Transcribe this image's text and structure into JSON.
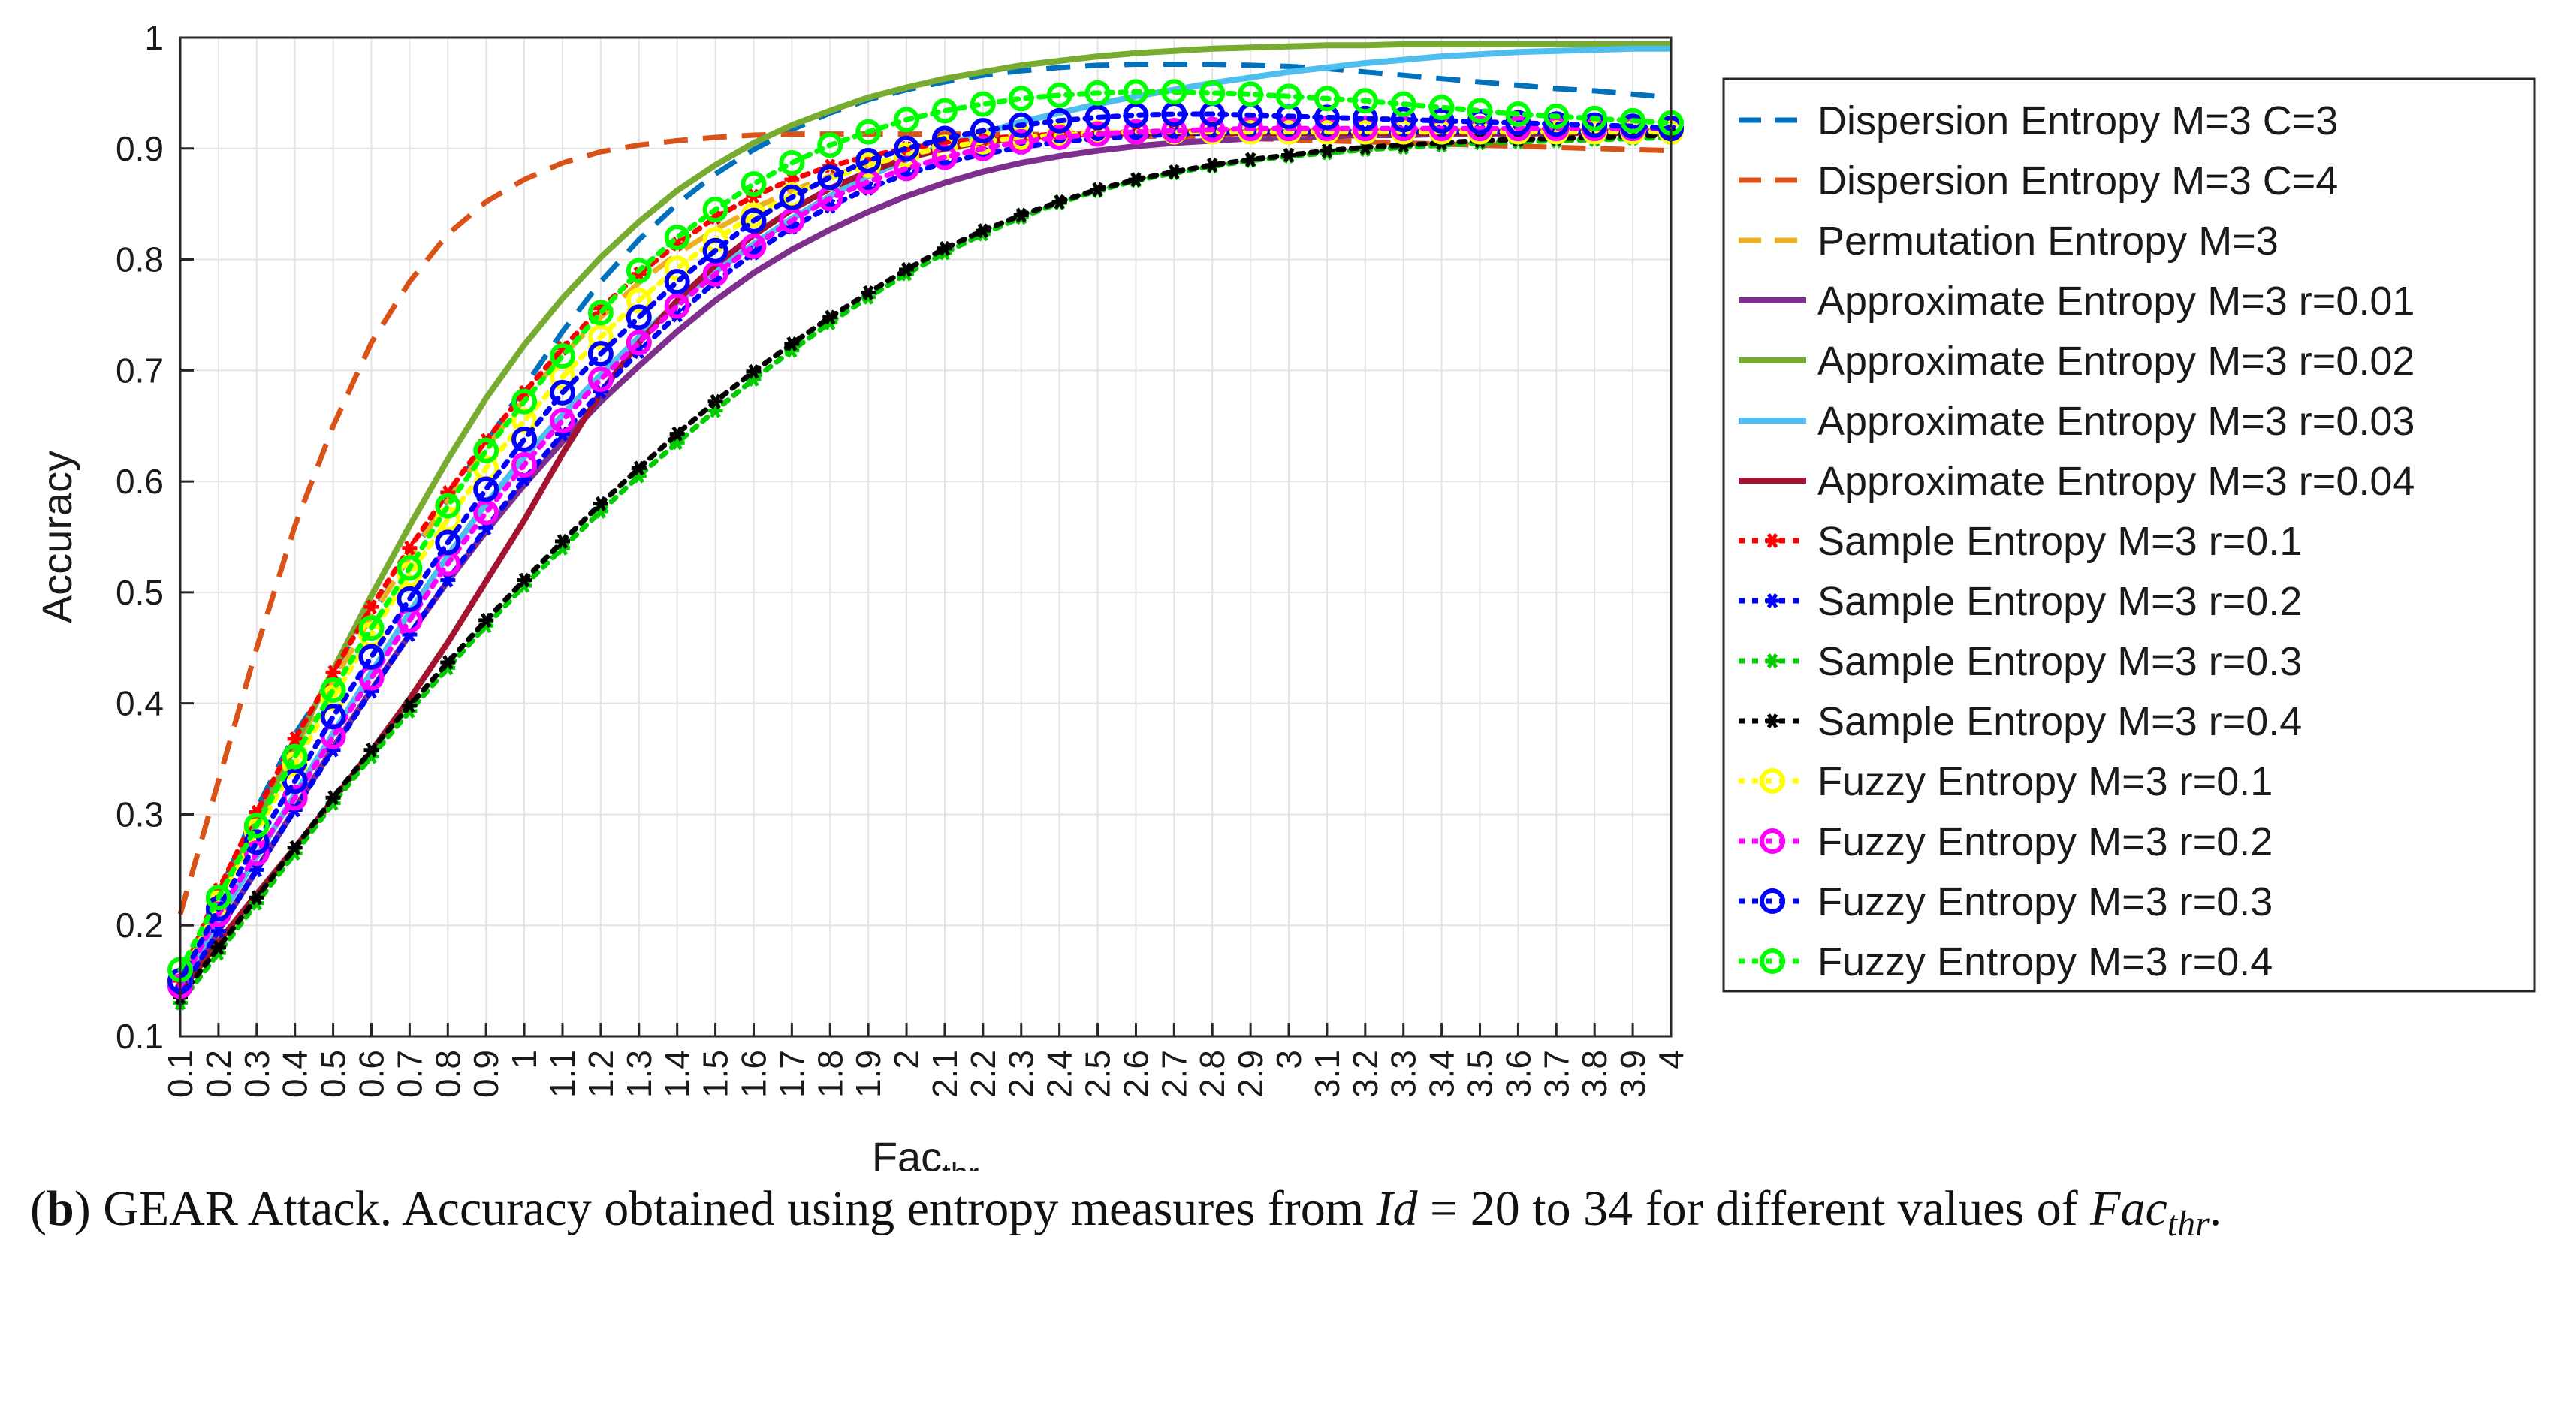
{
  "caption": {
    "open_paren": "(",
    "label": "b",
    "close_paren": ")",
    "text_before_id": " GEAR Attack. Accuracy obtained using entropy measures from ",
    "id_symbol": "Id",
    "text_after_id": " = 20 to 34 for different values of ",
    "fac_main": "Fac",
    "fac_sub": "thr",
    "period": "."
  },
  "chart_data": {
    "type": "line",
    "xlabel_main": "Fac",
    "xlabel_sub": "thr",
    "ylabel": "Accuracy",
    "ylim": [
      0.1,
      1
    ],
    "yticks": [
      0.1,
      0.2,
      0.3,
      0.4,
      0.5,
      0.6,
      0.7,
      0.8,
      0.9,
      1
    ],
    "ytick_labels": [
      "0.1",
      "0.2",
      "0.3",
      "0.4",
      "0.5",
      "0.6",
      "0.7",
      "0.8",
      "0.9",
      "1"
    ],
    "x": [
      0.1,
      0.2,
      0.3,
      0.4,
      0.5,
      0.6,
      0.7,
      0.8,
      0.9,
      1.0,
      1.1,
      1.2,
      1.3,
      1.4,
      1.5,
      1.6,
      1.7,
      1.8,
      1.9,
      2.0,
      2.1,
      2.2,
      2.3,
      2.4,
      2.5,
      2.6,
      2.7,
      2.8,
      2.9,
      3.0,
      3.1,
      3.2,
      3.3,
      3.4,
      3.5,
      3.6,
      3.7,
      3.8,
      3.9,
      4.0
    ],
    "xtick_labels": [
      "0.1",
      "0.2",
      "0.3",
      "0.4",
      "0.5",
      "0.6",
      "0.7",
      "0.8",
      "0.9",
      "1",
      "1.1",
      "1.2",
      "1.3",
      "1.4",
      "1.5",
      "1.6",
      "1.7",
      "1.8",
      "1.9",
      "2",
      "2.1",
      "2.2",
      "2.3",
      "2.4",
      "2.5",
      "2.6",
      "2.7",
      "2.8",
      "2.9",
      "3",
      "3.1",
      "3.2",
      "3.3",
      "3.4",
      "3.5",
      "3.6",
      "3.7",
      "3.8",
      "3.9",
      "4"
    ],
    "grid": true,
    "legend_position": "right",
    "series": [
      {
        "name": "Dispersion Entropy M=3 C=3",
        "color": "#0072BD",
        "style": "dashed",
        "marker": "none",
        "values": [
          0.15,
          0.228,
          0.305,
          0.372,
          0.425,
          0.48,
          0.532,
          0.585,
          0.635,
          0.685,
          0.735,
          0.78,
          0.818,
          0.85,
          0.877,
          0.899,
          0.917,
          0.932,
          0.944,
          0.953,
          0.96,
          0.966,
          0.97,
          0.973,
          0.975,
          0.976,
          0.976,
          0.976,
          0.975,
          0.974,
          0.972,
          0.969,
          0.966,
          0.963,
          0.96,
          0.957,
          0.954,
          0.952,
          0.949,
          0.946
        ]
      },
      {
        "name": "Dispersion Entropy M=3 C=4",
        "color": "#D95319",
        "style": "dashed",
        "marker": "none",
        "values": [
          0.21,
          0.33,
          0.45,
          0.56,
          0.65,
          0.725,
          0.78,
          0.823,
          0.852,
          0.872,
          0.887,
          0.897,
          0.903,
          0.907,
          0.91,
          0.912,
          0.913,
          0.913,
          0.913,
          0.913,
          0.913,
          0.913,
          0.913,
          0.912,
          0.912,
          0.911,
          0.911,
          0.91,
          0.909,
          0.908,
          0.907,
          0.906,
          0.905,
          0.904,
          0.903,
          0.902,
          0.901,
          0.9,
          0.899,
          0.898
        ]
      },
      {
        "name": "Permutation Entropy M=3",
        "color": "#EDB120",
        "style": "dashed",
        "marker": "none",
        "values": [
          0.15,
          0.225,
          0.295,
          0.36,
          0.42,
          0.478,
          0.532,
          0.583,
          0.63,
          0.674,
          0.713,
          0.748,
          0.779,
          0.805,
          0.827,
          0.846,
          0.862,
          0.875,
          0.885,
          0.893,
          0.899,
          0.904,
          0.908,
          0.911,
          0.913,
          0.914,
          0.915,
          0.916,
          0.916,
          0.916,
          0.916,
          0.916,
          0.916,
          0.916,
          0.916,
          0.916,
          0.916,
          0.916,
          0.916,
          0.916
        ]
      },
      {
        "name": "Approximate Entropy M=3 r=0.01",
        "color": "#7E2F8E",
        "style": "solid",
        "marker": "none",
        "values": [
          0.14,
          0.195,
          0.25,
          0.305,
          0.36,
          0.412,
          0.462,
          0.51,
          0.555,
          0.597,
          0.636,
          0.672,
          0.704,
          0.735,
          0.763,
          0.788,
          0.809,
          0.827,
          0.843,
          0.857,
          0.869,
          0.879,
          0.887,
          0.893,
          0.898,
          0.902,
          0.905,
          0.907,
          0.909,
          0.91,
          0.911,
          0.912,
          0.912,
          0.913,
          0.913,
          0.913,
          0.914,
          0.914,
          0.914,
          0.914
        ]
      },
      {
        "name": "Approximate Entropy M=3 r=0.02",
        "color": "#77AC30",
        "style": "solid",
        "marker": "none",
        "values": [
          0.15,
          0.223,
          0.293,
          0.362,
          0.43,
          0.497,
          0.56,
          0.62,
          0.675,
          0.723,
          0.765,
          0.802,
          0.834,
          0.862,
          0.885,
          0.905,
          0.921,
          0.934,
          0.946,
          0.955,
          0.963,
          0.969,
          0.975,
          0.979,
          0.983,
          0.986,
          0.988,
          0.99,
          0.991,
          0.992,
          0.993,
          0.993,
          0.994,
          0.994,
          0.994,
          0.994,
          0.994,
          0.994,
          0.994,
          0.994
        ]
      },
      {
        "name": "Approximate Entropy M=3 r=0.03",
        "color": "#4DBEEE",
        "style": "solid",
        "marker": "none",
        "values": [
          0.145,
          0.205,
          0.262,
          0.318,
          0.373,
          0.428,
          0.482,
          0.533,
          0.58,
          0.622,
          0.66,
          0.696,
          0.73,
          0.761,
          0.789,
          0.814,
          0.837,
          0.857,
          0.875,
          0.89,
          0.903,
          0.914,
          0.924,
          0.932,
          0.94,
          0.947,
          0.953,
          0.959,
          0.964,
          0.969,
          0.973,
          0.977,
          0.98,
          0.983,
          0.985,
          0.987,
          0.988,
          0.989,
          0.99,
          0.99
        ]
      },
      {
        "name": "Approximate Entropy M=3 r=0.04",
        "color": "#A2142F",
        "style": "solid",
        "marker": "none",
        "values": [
          0.14,
          0.185,
          0.228,
          0.27,
          0.313,
          0.357,
          0.404,
          0.455,
          0.51,
          0.565,
          0.625,
          0.68,
          0.725,
          0.763,
          0.795,
          0.822,
          0.845,
          0.864,
          0.879,
          0.891,
          0.9,
          0.906,
          0.91,
          0.912,
          0.913,
          0.914,
          0.914,
          0.914,
          0.914,
          0.914,
          0.914,
          0.914,
          0.914,
          0.914,
          0.914,
          0.914,
          0.914,
          0.914,
          0.914,
          0.914
        ]
      },
      {
        "name": "Sample Entropy M=3 r=0.1",
        "color": "#FF0000",
        "style": "dotted",
        "marker": "star",
        "values": [
          0.15,
          0.232,
          0.302,
          0.368,
          0.428,
          0.487,
          0.54,
          0.59,
          0.637,
          0.68,
          0.72,
          0.756,
          0.787,
          0.814,
          0.838,
          0.857,
          0.872,
          0.884,
          0.893,
          0.9,
          0.905,
          0.909,
          0.911,
          0.913,
          0.914,
          0.915,
          0.915,
          0.915,
          0.915,
          0.915,
          0.915,
          0.915,
          0.915,
          0.915,
          0.915,
          0.915,
          0.915,
          0.915,
          0.915,
          0.915
        ]
      },
      {
        "name": "Sample Entropy M=3 r=0.2",
        "color": "#0000FF",
        "style": "dotted",
        "marker": "star",
        "values": [
          0.14,
          0.195,
          0.25,
          0.304,
          0.358,
          0.411,
          0.462,
          0.511,
          0.558,
          0.602,
          0.643,
          0.681,
          0.717,
          0.75,
          0.78,
          0.806,
          0.829,
          0.848,
          0.864,
          0.877,
          0.887,
          0.895,
          0.901,
          0.906,
          0.909,
          0.911,
          0.913,
          0.914,
          0.915,
          0.915,
          0.915,
          0.915,
          0.915,
          0.915,
          0.915,
          0.915,
          0.915,
          0.915,
          0.915,
          0.915
        ]
      },
      {
        "name": "Sample Entropy M=3 r=0.3",
        "color": "#00CC00",
        "style": "dotted",
        "marker": "star",
        "values": [
          0.13,
          0.175,
          0.22,
          0.265,
          0.31,
          0.352,
          0.393,
          0.432,
          0.47,
          0.506,
          0.54,
          0.573,
          0.605,
          0.635,
          0.664,
          0.692,
          0.718,
          0.743,
          0.766,
          0.787,
          0.806,
          0.823,
          0.838,
          0.851,
          0.862,
          0.871,
          0.878,
          0.884,
          0.889,
          0.893,
          0.896,
          0.899,
          0.901,
          0.903,
          0.905,
          0.906,
          0.907,
          0.908,
          0.909,
          0.91
        ]
      },
      {
        "name": "Sample Entropy M=3 r=0.4",
        "color": "#000000",
        "style": "dotted",
        "marker": "star",
        "values": [
          0.135,
          0.18,
          0.225,
          0.27,
          0.315,
          0.358,
          0.398,
          0.437,
          0.475,
          0.511,
          0.546,
          0.58,
          0.612,
          0.643,
          0.672,
          0.699,
          0.724,
          0.748,
          0.77,
          0.791,
          0.81,
          0.826,
          0.84,
          0.852,
          0.863,
          0.872,
          0.879,
          0.885,
          0.89,
          0.894,
          0.898,
          0.901,
          0.903,
          0.905,
          0.907,
          0.908,
          0.909,
          0.91,
          0.911,
          0.912
        ]
      },
      {
        "name": "Fuzzy Entropy M=3 r=0.1",
        "color": "#FFFF00",
        "style": "dotted",
        "marker": "circle",
        "values": [
          0.15,
          0.22,
          0.285,
          0.345,
          0.405,
          0.462,
          0.516,
          0.566,
          0.612,
          0.655,
          0.694,
          0.73,
          0.763,
          0.792,
          0.818,
          0.84,
          0.858,
          0.873,
          0.885,
          0.894,
          0.901,
          0.906,
          0.91,
          0.912,
          0.914,
          0.915,
          0.915,
          0.915,
          0.915,
          0.915,
          0.915,
          0.915,
          0.915,
          0.915,
          0.915,
          0.915,
          0.915,
          0.915,
          0.915,
          0.915
        ]
      },
      {
        "name": "Fuzzy Entropy M=3 r=0.2",
        "color": "#FF00FF",
        "style": "dotted",
        "marker": "circle",
        "values": [
          0.145,
          0.21,
          0.265,
          0.315,
          0.37,
          0.423,
          0.475,
          0.526,
          0.572,
          0.615,
          0.655,
          0.692,
          0.725,
          0.758,
          0.787,
          0.812,
          0.835,
          0.855,
          0.87,
          0.882,
          0.892,
          0.9,
          0.906,
          0.91,
          0.913,
          0.915,
          0.916,
          0.917,
          0.918,
          0.918,
          0.918,
          0.918,
          0.918,
          0.918,
          0.918,
          0.918,
          0.918,
          0.918,
          0.918,
          0.918
        ]
      },
      {
        "name": "Fuzzy Entropy M=3 r=0.3",
        "color": "#0000FF",
        "style": "dotted",
        "marker": "circle",
        "values": [
          0.15,
          0.215,
          0.275,
          0.33,
          0.388,
          0.442,
          0.494,
          0.545,
          0.593,
          0.638,
          0.68,
          0.715,
          0.748,
          0.78,
          0.808,
          0.835,
          0.856,
          0.874,
          0.889,
          0.9,
          0.909,
          0.916,
          0.921,
          0.925,
          0.928,
          0.93,
          0.931,
          0.931,
          0.93,
          0.929,
          0.928,
          0.927,
          0.926,
          0.925,
          0.924,
          0.923,
          0.922,
          0.921,
          0.92,
          0.918
        ]
      },
      {
        "name": "Fuzzy Entropy M=3 r=0.4",
        "color": "#00FF00",
        "style": "dotted",
        "marker": "circle",
        "values": [
          0.16,
          0.225,
          0.29,
          0.352,
          0.412,
          0.468,
          0.522,
          0.578,
          0.628,
          0.672,
          0.713,
          0.752,
          0.79,
          0.82,
          0.845,
          0.868,
          0.887,
          0.903,
          0.915,
          0.926,
          0.934,
          0.94,
          0.945,
          0.948,
          0.95,
          0.951,
          0.951,
          0.95,
          0.949,
          0.947,
          0.945,
          0.943,
          0.94,
          0.937,
          0.934,
          0.931,
          0.929,
          0.927,
          0.925,
          0.923
        ]
      }
    ]
  }
}
